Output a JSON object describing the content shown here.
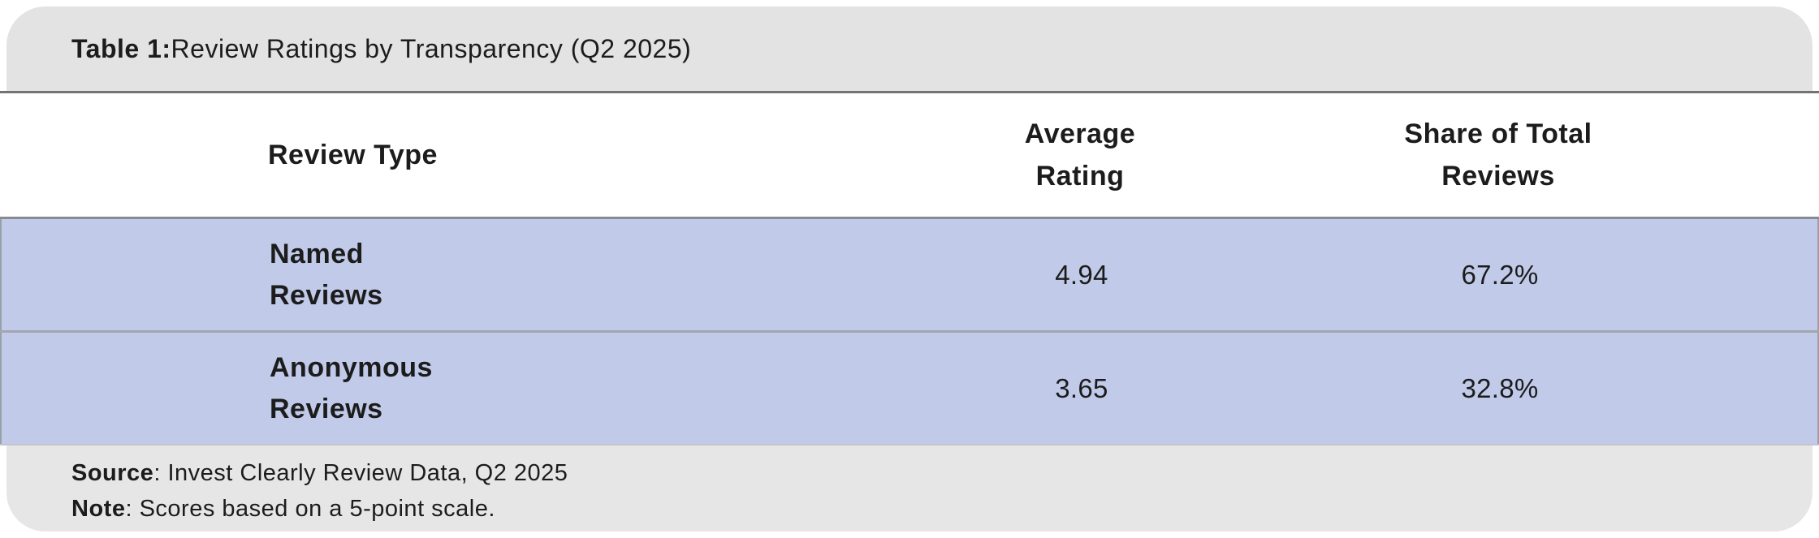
{
  "title": {
    "prefix": "Table 1:",
    "text": " Review Ratings by Transparency (Q2 2025)"
  },
  "columns": {
    "review_type": "Review Type",
    "average_rating": "Average\nRating",
    "share_of_total": "Share of Total\nReviews"
  },
  "rows": [
    {
      "label": "Named\nReviews",
      "average_rating": "4.94",
      "share_of_total": "67.2%"
    },
    {
      "label": "Anonymous\nReviews",
      "average_rating": "3.65",
      "share_of_total": "32.8%"
    }
  ],
  "footer": {
    "source_label": "Source",
    "source_text": ": Invest Clearly Review Data, Q2 2025",
    "note_label": "Note",
    "note_text": ": Scores based on a 5-point scale."
  },
  "colors": {
    "row_highlight": "#c1cbe9",
    "band_gray": "#e3e3e3",
    "rule_dark": "#737373",
    "rule_row": "#a2a7ae"
  },
  "chart_data": {
    "type": "table",
    "title": "Table 1: Review Ratings by Transparency (Q2 2025)",
    "columns": [
      "Review Type",
      "Average Rating",
      "Share of Total Reviews"
    ],
    "rows": [
      [
        "Named Reviews",
        4.94,
        "67.2%"
      ],
      [
        "Anonymous Reviews",
        3.65,
        "32.8%"
      ]
    ],
    "source": "Invest Clearly Review Data, Q2 2025",
    "note": "Scores based on a 5-point scale."
  }
}
